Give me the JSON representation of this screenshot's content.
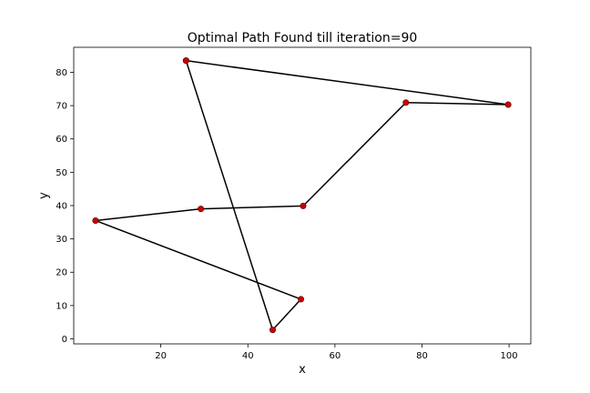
{
  "chart_data": {
    "type": "line",
    "title": "Optimal Path Found till iteration=90",
    "xlabel": "x",
    "ylabel": "y",
    "xlim": [
      0,
      105
    ],
    "ylim": [
      -1.5,
      87.5
    ],
    "xticks": [
      20,
      40,
      60,
      80,
      100
    ],
    "yticks": [
      0,
      10,
      20,
      30,
      40,
      50,
      60,
      70,
      80
    ],
    "grid": false,
    "line_color": "#000000",
    "marker_color": "#cc0000",
    "path": [
      {
        "x": 25.8,
        "y": 83.5
      },
      {
        "x": 99.8,
        "y": 70.3
      },
      {
        "x": 76.3,
        "y": 70.9
      },
      {
        "x": 52.7,
        "y": 39.9
      },
      {
        "x": 29.2,
        "y": 39.0
      },
      {
        "x": 5.0,
        "y": 35.5
      },
      {
        "x": 52.2,
        "y": 11.9
      },
      {
        "x": 45.7,
        "y": 2.7
      },
      {
        "x": 25.8,
        "y": 83.5
      }
    ]
  }
}
